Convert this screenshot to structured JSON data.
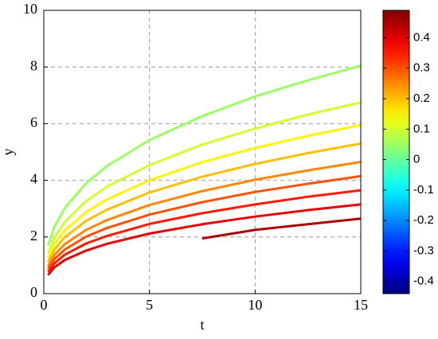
{
  "chart_data": {
    "type": "contour",
    "x_label": "t",
    "y_label": "y",
    "xlim": [
      0,
      15
    ],
    "ylim": [
      0,
      10
    ],
    "xticks": [
      0,
      5,
      10,
      15
    ],
    "yticks": [
      0,
      2,
      4,
      6,
      8,
      10
    ],
    "grid": true,
    "clim": [
      -0.44,
      0.49
    ],
    "cticks": [
      -0.4,
      -0.3,
      -0.2,
      -0.1,
      0,
      0.1,
      0.2,
      0.3,
      0.4
    ],
    "colormap": "jet",
    "x": [
      0.2,
      0.5,
      1,
      2,
      3,
      5,
      7.5,
      10,
      12.5,
      15
    ],
    "series": [
      {
        "level": 0.05,
        "values": [
          1.7,
          2.37,
          3.03,
          3.9,
          4.51,
          5.42,
          6.27,
          6.96,
          7.53,
          8.05
        ]
      },
      {
        "level": 0.1,
        "values": [
          1.42,
          1.98,
          2.54,
          3.27,
          3.78,
          4.54,
          5.26,
          5.83,
          6.32,
          6.75
        ]
      },
      {
        "level": 0.15,
        "values": [
          1.26,
          1.75,
          2.24,
          2.88,
          3.33,
          4.0,
          4.64,
          5.14,
          5.57,
          5.95
        ]
      },
      {
        "level": 0.2,
        "values": [
          1.12,
          1.56,
          2.0,
          2.57,
          2.97,
          3.57,
          4.13,
          4.58,
          4.96,
          5.3
        ]
      },
      {
        "level": 0.25,
        "values": [
          0.98,
          1.37,
          1.75,
          2.25,
          2.6,
          3.13,
          3.62,
          4.02,
          4.35,
          4.65
        ]
      },
      {
        "level": 0.3,
        "values": [
          0.88,
          1.22,
          1.56,
          2.01,
          2.32,
          2.79,
          3.23,
          3.59,
          3.88,
          4.15
        ]
      },
      {
        "level": 0.35,
        "values": [
          0.77,
          1.07,
          1.38,
          1.77,
          2.04,
          2.46,
          2.84,
          3.15,
          3.42,
          3.65
        ]
      },
      {
        "level": 0.4,
        "values": [
          0.66,
          0.93,
          1.19,
          1.52,
          1.76,
          2.12,
          2.45,
          2.72,
          2.95,
          3.15
        ]
      },
      {
        "level": 0.45,
        "values": [
          null,
          null,
          null,
          null,
          null,
          null,
          1.95,
          2.25,
          2.45,
          2.65
        ]
      }
    ]
  }
}
